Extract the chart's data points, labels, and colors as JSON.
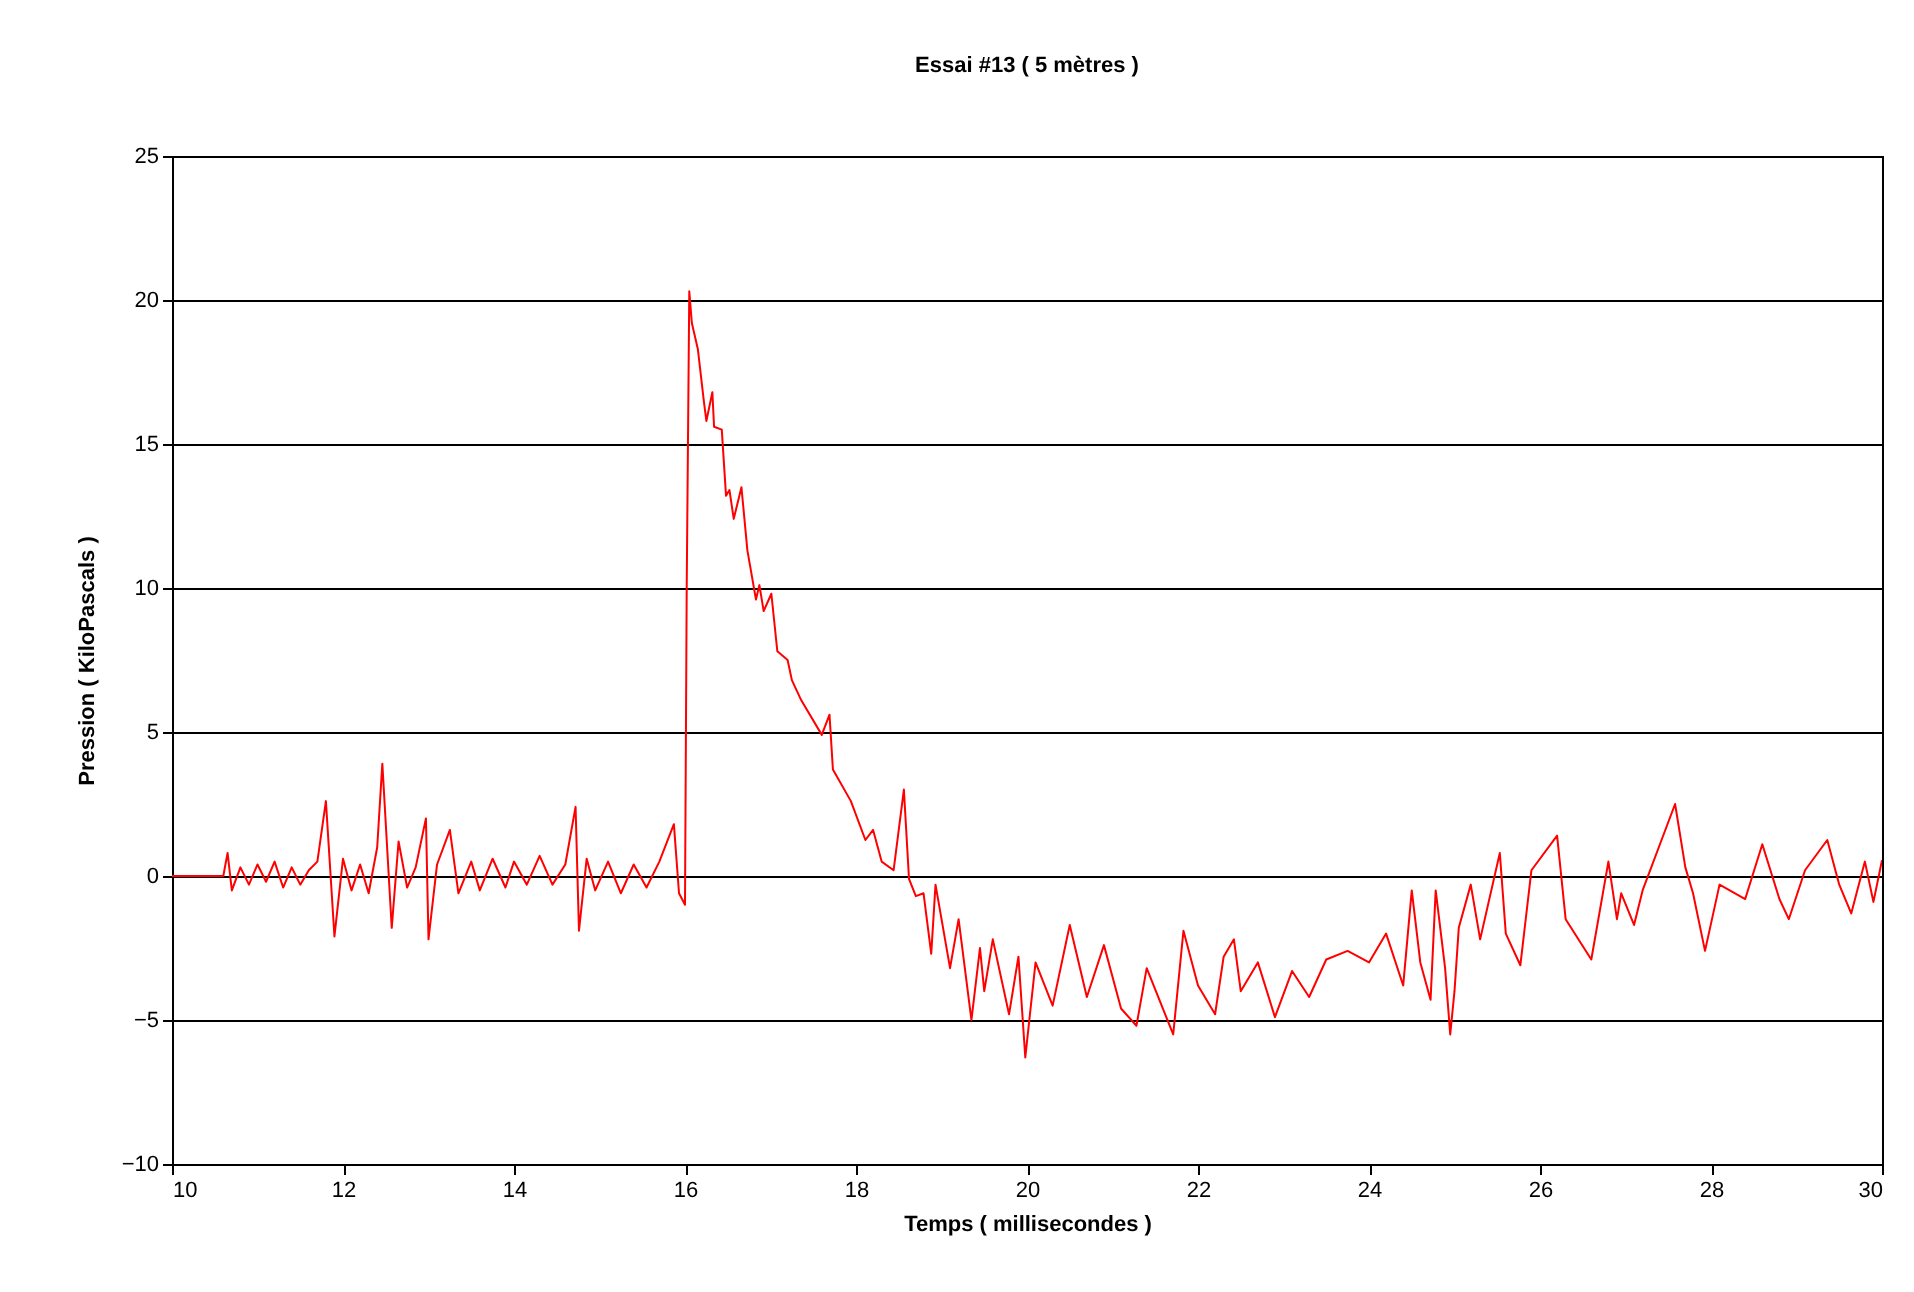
{
  "chart_data": {
    "type": "line",
    "title": "Essai #13   ( 5 mètres )",
    "xlabel": "Temps   ( millisecondes )",
    "ylabel": "Pression  ( KiloPascals )",
    "xlim": [
      10,
      30
    ],
    "xticks": [
      10,
      12,
      14,
      16,
      18,
      20,
      22,
      24,
      26,
      28,
      30
    ],
    "ylim": [
      -10,
      25
    ],
    "yticks": [
      -10,
      -5,
      0,
      5,
      10,
      15,
      20,
      25
    ],
    "grid": "y",
    "marker": "none",
    "line_style": "solid",
    "x": [
      10.0,
      10.6,
      10.65,
      10.7,
      10.8,
      10.9,
      11.0,
      11.1,
      11.2,
      11.3,
      11.4,
      11.5,
      11.6,
      11.7,
      11.8,
      11.9,
      12.0,
      12.1,
      12.2,
      12.3,
      12.4,
      12.46,
      12.57,
      12.65,
      12.75,
      12.85,
      12.97,
      13.0,
      13.1,
      13.25,
      13.35,
      13.5,
      13.6,
      13.75,
      13.9,
      14.0,
      14.15,
      14.3,
      14.45,
      14.6,
      14.72,
      14.76,
      14.85,
      14.95,
      15.1,
      15.25,
      15.4,
      15.55,
      15.7,
      15.87,
      15.93,
      16.0,
      16.02,
      16.05,
      16.08,
      16.15,
      16.22,
      16.25,
      16.32,
      16.34,
      16.43,
      16.48,
      16.52,
      16.57,
      16.66,
      16.73,
      16.83,
      16.87,
      16.92,
      17.01,
      17.08,
      17.2,
      17.25,
      17.36,
      17.6,
      17.69,
      17.73,
      17.94,
      18.11,
      18.2,
      18.3,
      18.44,
      18.56,
      18.62,
      18.7,
      18.79,
      18.88,
      18.93,
      19.1,
      19.2,
      19.35,
      19.45,
      19.5,
      19.6,
      19.79,
      19.9,
      19.98,
      20.1,
      20.3,
      20.5,
      20.7,
      20.9,
      21.1,
      21.28,
      21.4,
      21.71,
      21.83,
      22.0,
      22.2,
      22.3,
      22.42,
      22.5,
      22.7,
      22.9,
      23.1,
      23.3,
      23.5,
      23.75,
      24.0,
      24.2,
      24.4,
      24.5,
      24.6,
      24.72,
      24.78,
      24.89,
      24.95,
      25.0,
      25.05,
      25.19,
      25.3,
      25.53,
      25.6,
      25.77,
      25.9,
      26.2,
      26.3,
      26.6,
      26.8,
      26.9,
      26.95,
      27.1,
      27.2,
      27.58,
      27.7,
      27.79,
      27.93,
      28.1,
      28.4,
      28.6,
      28.8,
      28.91,
      29.1,
      29.36,
      29.5,
      29.64,
      29.8,
      29.9,
      30.0
    ],
    "series": [
      {
        "color": "#ff0000",
        "values": [
          0,
          0,
          0.8,
          -0.5,
          0.3,
          -0.3,
          0.4,
          -0.2,
          0.5,
          -0.4,
          0.3,
          -0.3,
          0.2,
          0.5,
          2.6,
          -2.1,
          0.6,
          -0.5,
          0.4,
          -0.6,
          1.0,
          3.9,
          -1.8,
          1.2,
          -0.4,
          0.3,
          2.0,
          -2.2,
          0.4,
          1.6,
          -0.6,
          0.5,
          -0.5,
          0.6,
          -0.4,
          0.5,
          -0.3,
          0.7,
          -0.3,
          0.4,
          2.4,
          -1.9,
          0.6,
          -0.5,
          0.5,
          -0.6,
          0.4,
          -0.4,
          0.5,
          1.8,
          -0.6,
          -1.0,
          10,
          20.3,
          19.2,
          18.3,
          16.5,
          15.8,
          16.8,
          15.6,
          15.5,
          13.2,
          13.4,
          12.4,
          13.5,
          11.3,
          9.6,
          10.1,
          9.2,
          9.8,
          7.8,
          7.5,
          6.8,
          6.1,
          4.9,
          5.6,
          3.7,
          2.6,
          1.25,
          1.6,
          0.5,
          0.2,
          3.0,
          -0.1,
          -0.7,
          -0.6,
          -2.7,
          -0.3,
          -3.2,
          -1.5,
          -5.0,
          -2.5,
          -4.0,
          -2.2,
          -4.8,
          -2.8,
          -6.3,
          -3.0,
          -4.5,
          -1.7,
          -4.2,
          -2.4,
          -4.6,
          -5.2,
          -3.2,
          -5.5,
          -1.9,
          -3.8,
          -4.8,
          -2.8,
          -2.2,
          -4.0,
          -3.0,
          -4.9,
          -3.3,
          -4.2,
          -2.9,
          -2.6,
          -3.0,
          -2.0,
          -3.8,
          -0.5,
          -3.0,
          -4.3,
          -0.5,
          -3.2,
          -5.5,
          -4.0,
          -1.8,
          -0.3,
          -2.2,
          0.8,
          -2.0,
          -3.1,
          0.2,
          1.4,
          -1.5,
          -2.9,
          0.5,
          -1.5,
          -0.6,
          -1.7,
          -0.5,
          2.5,
          0.3,
          -0.6,
          -2.6,
          -0.3,
          -0.8,
          1.1,
          -0.8,
          -1.5,
          0.2,
          1.25,
          -0.3,
          -1.3,
          0.5,
          -0.9,
          0.55
        ]
      }
    ]
  }
}
